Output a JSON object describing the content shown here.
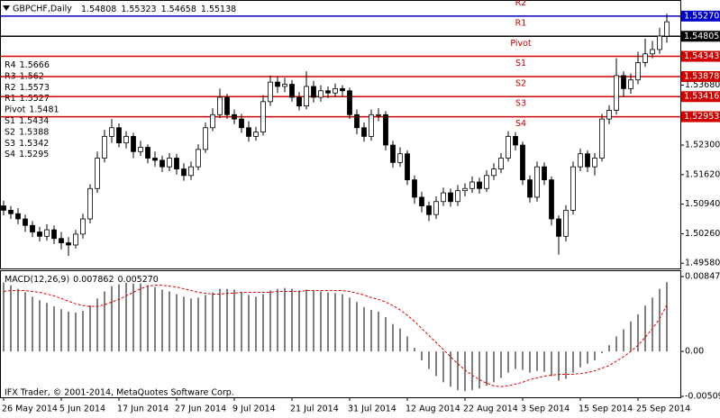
{
  "chart_data": [
    {
      "type": "candlestick",
      "title": "GBPCHF,Daily",
      "categories": [
        "26 May 2014",
        null,
        null,
        null,
        null,
        null,
        null,
        null,
        "5 Jun 2014",
        null,
        null,
        null,
        null,
        null,
        null,
        null,
        "17 Jun 2014",
        null,
        null,
        null,
        null,
        null,
        null,
        null,
        "27 Jun 2014",
        null,
        null,
        null,
        null,
        null,
        null,
        null,
        "9 Jul 2014",
        null,
        null,
        null,
        null,
        null,
        null,
        null,
        "21 Jul 2014",
        null,
        null,
        null,
        null,
        null,
        null,
        null,
        "31 Jul 2014",
        null,
        null,
        null,
        null,
        null,
        null,
        null,
        "12 Aug 2014",
        null,
        null,
        null,
        null,
        null,
        null,
        null,
        "22 Aug 2014",
        null,
        null,
        null,
        null,
        null,
        null,
        null,
        "3 Sep 2014",
        null,
        null,
        null,
        null,
        null,
        null,
        null,
        "15 Sep 2014",
        null,
        null,
        null,
        null,
        null,
        null,
        null,
        "25 Sep 2014",
        null,
        null,
        null,
        null
      ],
      "open": [
        1.509,
        1.508,
        1.5072,
        1.506,
        1.5045,
        1.503,
        1.502,
        1.5035,
        1.5015,
        1.5005,
        1.5,
        1.5025,
        1.506,
        1.513,
        1.52,
        1.525,
        1.527,
        1.5235,
        1.525,
        1.5215,
        1.5225,
        1.52,
        1.5195,
        1.518,
        1.52,
        1.5175,
        1.516,
        1.518,
        1.522,
        1.527,
        1.53,
        1.534,
        1.53,
        1.529,
        1.527,
        1.525,
        1.526,
        1.533,
        1.5375,
        1.5365,
        1.537,
        1.534,
        1.532,
        1.5365,
        1.534,
        1.5355,
        1.535,
        1.536,
        1.5355,
        1.53,
        1.527,
        1.525,
        1.53,
        1.53,
        1.523,
        1.519,
        1.521,
        1.515,
        1.511,
        1.509,
        1.507,
        1.51,
        1.512,
        1.51,
        1.5125,
        1.513,
        1.5145,
        1.513,
        1.516,
        1.5175,
        1.52,
        1.525,
        1.523,
        1.515,
        1.511,
        1.518,
        1.515,
        1.506,
        1.502,
        1.508,
        1.518,
        1.521,
        1.518,
        1.52,
        1.529,
        1.531,
        1.539,
        1.536,
        1.538,
        1.542,
        1.544,
        1.545,
        1.54808
      ],
      "high": [
        1.5102,
        1.509,
        1.5085,
        1.507,
        1.5055,
        1.5042,
        1.5048,
        1.5045,
        1.503,
        1.5018,
        1.5035,
        1.5072,
        1.514,
        1.5215,
        1.5265,
        1.529,
        1.528,
        1.5262,
        1.5258,
        1.524,
        1.5232,
        1.5215,
        1.5205,
        1.5212,
        1.521,
        1.5188,
        1.5192,
        1.5232,
        1.5282,
        1.5315,
        1.536,
        1.5348,
        1.5312,
        1.5302,
        1.5285,
        1.5272,
        1.5345,
        1.539,
        1.5388,
        1.5385,
        1.538,
        1.5352,
        1.54,
        1.5378,
        1.5368,
        1.5365,
        1.5372,
        1.5368,
        1.5362,
        1.5312,
        1.5282,
        1.5312,
        1.5315,
        1.5308,
        1.524,
        1.5225,
        1.5218,
        1.516,
        1.5122,
        1.51,
        1.5112,
        1.5132,
        1.513,
        1.5138,
        1.5142,
        1.5158,
        1.5155,
        1.5172,
        1.5188,
        1.5212,
        1.5262,
        1.526,
        1.5238,
        1.516,
        1.5192,
        1.519,
        1.5158,
        1.5068,
        1.5092,
        1.5192,
        1.5222,
        1.5218,
        1.5212,
        1.5302,
        1.5322,
        1.543,
        1.54,
        1.5395,
        1.5445,
        1.5475,
        1.547,
        1.55,
        1.55323
      ],
      "low": [
        1.5068,
        1.506,
        1.5048,
        1.503,
        1.5018,
        1.5008,
        1.501,
        1.5002,
        1.499,
        1.4975,
        1.4992,
        1.5015,
        1.505,
        1.512,
        1.519,
        1.5235,
        1.5225,
        1.5222,
        1.52,
        1.5205,
        1.5188,
        1.518,
        1.5168,
        1.517,
        1.5162,
        1.5148,
        1.515,
        1.5172,
        1.5212,
        1.5262,
        1.5292,
        1.529,
        1.5278,
        1.5258,
        1.5238,
        1.524,
        1.5252,
        1.532,
        1.535,
        1.5352,
        1.533,
        1.531,
        1.5312,
        1.5328,
        1.533,
        1.5338,
        1.534,
        1.5342,
        1.529,
        1.5255,
        1.5238,
        1.524,
        1.5285,
        1.5218,
        1.5178,
        1.518,
        1.5138,
        1.5095,
        1.5075,
        1.5055,
        1.506,
        1.509,
        1.5088,
        1.509,
        1.5112,
        1.512,
        1.5118,
        1.5122,
        1.515,
        1.5165,
        1.5192,
        1.5218,
        1.5138,
        1.5098,
        1.51,
        1.5138,
        1.5045,
        1.4978,
        1.5008,
        1.507,
        1.517,
        1.5168,
        1.516,
        1.5192,
        1.5278,
        1.53,
        1.534,
        1.5348,
        1.537,
        1.541,
        1.543,
        1.544,
        1.54658
      ],
      "close": [
        1.508,
        1.5072,
        1.506,
        1.5045,
        1.503,
        1.502,
        1.5035,
        1.5015,
        1.5005,
        1.5,
        1.5025,
        1.506,
        1.513,
        1.52,
        1.525,
        1.527,
        1.5235,
        1.525,
        1.5215,
        1.5225,
        1.52,
        1.5195,
        1.518,
        1.52,
        1.5175,
        1.516,
        1.518,
        1.522,
        1.527,
        1.53,
        1.534,
        1.53,
        1.529,
        1.527,
        1.525,
        1.526,
        1.533,
        1.5375,
        1.5365,
        1.537,
        1.534,
        1.532,
        1.5365,
        1.534,
        1.5355,
        1.535,
        1.536,
        1.5355,
        1.53,
        1.527,
        1.525,
        1.53,
        1.53,
        1.523,
        1.519,
        1.521,
        1.515,
        1.511,
        1.509,
        1.507,
        1.51,
        1.512,
        1.51,
        1.5125,
        1.513,
        1.5145,
        1.513,
        1.516,
        1.5175,
        1.52,
        1.525,
        1.523,
        1.515,
        1.511,
        1.518,
        1.515,
        1.506,
        1.502,
        1.508,
        1.518,
        1.521,
        1.518,
        1.52,
        1.529,
        1.531,
        1.539,
        1.536,
        1.538,
        1.542,
        1.544,
        1.545,
        1.5481,
        1.55138
      ],
      "ylim": [
        1.4946,
        1.5564
      ],
      "yticks": [
        {
          "value": 1.5368,
          "label": "1.53680"
        },
        {
          "value": 1.523,
          "label": "1.52300"
        },
        {
          "value": 1.5162,
          "label": "1.51620"
        },
        {
          "value": 1.5094,
          "label": "1.50940"
        },
        {
          "value": 1.5026,
          "label": "1.50260"
        },
        {
          "value": 1.4958,
          "label": "1.49580"
        }
      ],
      "levels": [
        {
          "name": "R4",
          "value": 1.5666
        },
        {
          "name": "R3",
          "value": 1.562
        },
        {
          "name": "R2",
          "value": 1.5573
        },
        {
          "name": "R1",
          "value": 1.5527,
          "axis_label": "1.55270",
          "color": "#0000c8"
        },
        {
          "name": "Pivot",
          "value": 1.54805,
          "label": "1.5481",
          "color": "#000000"
        },
        {
          "name": "S1",
          "value": 1.54343,
          "label": "1.5434",
          "color": "#d00000"
        },
        {
          "name": "S2",
          "value": 1.53878,
          "label": "1.5388",
          "color": "#d00000"
        },
        {
          "name": "S3",
          "value": 1.53416,
          "label": "1.5342",
          "color": "#d00000"
        },
        {
          "name": "S4",
          "value": 1.52953,
          "label": "1.5295",
          "color": "#d00000"
        }
      ],
      "footer": "IFX Trader, © 2001-2014, MetaQuotes Software Corp."
    },
    {
      "type": "macd",
      "title": "MACD(12,26,9)",
      "series": [
        {
          "color": "#000000",
          "values": [
            0.0078,
            0.0075,
            0.0071,
            0.0067,
            0.0062,
            0.0058,
            0.0055,
            0.0051,
            0.0048,
            0.0045,
            0.0044,
            0.0046,
            0.0052,
            0.006,
            0.0068,
            0.0074,
            0.0076,
            0.0078,
            0.0077,
            0.0077,
            0.0075,
            0.0073,
            0.007,
            0.0068,
            0.0065,
            0.0062,
            0.006,
            0.0061,
            0.0064,
            0.0067,
            0.0071,
            0.0071,
            0.007,
            0.0067,
            0.0064,
            0.0062,
            0.0065,
            0.0069,
            0.0071,
            0.0072,
            0.0071,
            0.0069,
            0.007,
            0.0069,
            0.0068,
            0.0067,
            0.0066,
            0.0065,
            0.0061,
            0.0056,
            0.005,
            0.0047,
            0.0045,
            0.0039,
            0.0031,
            0.0026,
            0.0017,
            0.0004,
            -0.001,
            -0.002,
            -0.0028,
            -0.0035,
            -0.004,
            -0.0044,
            -0.0045,
            -0.0044,
            -0.0042,
            -0.0039,
            -0.0035,
            -0.003,
            -0.0024,
            -0.002,
            -0.0021,
            -0.0024,
            -0.0022,
            -0.0023,
            -0.0028,
            -0.0033,
            -0.0031,
            -0.0024,
            -0.0018,
            -0.0014,
            -0.001,
            -0.0002,
            0.0007,
            0.0017,
            0.0025,
            0.0034,
            0.0042,
            0.0052,
            0.0061,
            0.0071,
            0.007862
          ]
        },
        {
          "color": "#e00000",
          "dashed": true,
          "last_value_label": "0.005270",
          "values": [
            0.0068,
            0.0069,
            0.0069,
            0.0069,
            0.0068,
            0.0067,
            0.0065,
            0.0063,
            0.006,
            0.0057,
            0.0054,
            0.0052,
            0.0051,
            0.0051,
            0.0053,
            0.0056,
            0.0059,
            0.0063,
            0.0067,
            0.0071,
            0.0074,
            0.0075,
            0.0075,
            0.0074,
            0.0073,
            0.0071,
            0.0069,
            0.0067,
            0.0066,
            0.0065,
            0.0065,
            0.0066,
            0.0066,
            0.0067,
            0.0067,
            0.0067,
            0.0067,
            0.0067,
            0.0068,
            0.0068,
            0.0068,
            0.0068,
            0.0069,
            0.0069,
            0.0069,
            0.0069,
            0.0069,
            0.0069,
            0.0068,
            0.0066,
            0.0064,
            0.0061,
            0.0059,
            0.0056,
            0.0052,
            0.0047,
            0.0041,
            0.0034,
            0.0026,
            0.0018,
            0.001,
            0.0002,
            -0.0006,
            -0.0014,
            -0.0021,
            -0.0027,
            -0.0032,
            -0.0036,
            -0.0039,
            -0.004,
            -0.0039,
            -0.0037,
            -0.0035,
            -0.0032,
            -0.003,
            -0.0028,
            -0.0027,
            -0.0026,
            -0.0026,
            -0.0026,
            -0.0025,
            -0.0024,
            -0.0022,
            -0.0019,
            -0.0016,
            -0.0011,
            -0.0006,
            0.0,
            0.0007,
            0.0016,
            0.0026,
            0.0037,
            0.00527
          ]
        }
      ],
      "ylim": [
        -0.0052,
        0.0092
      ],
      "yticks": [
        0.008479,
        {
          "value": 0,
          "label": "0.00"
        },
        -0.005097
      ]
    }
  ]
}
